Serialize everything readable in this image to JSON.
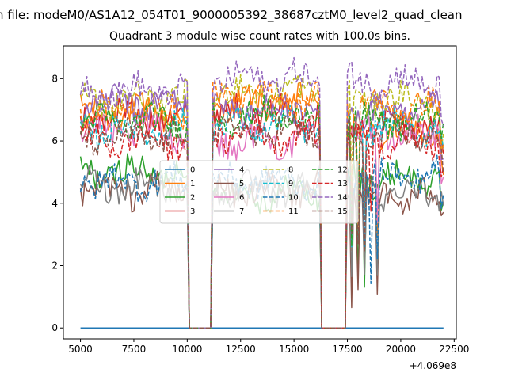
{
  "chart_data": {
    "type": "line",
    "suptitle": "n file: modeM0/AS1A12_054T01_9000005392_38687cztM0_level2_quad_clean",
    "title": "Quadrant 3 module wise count rates with 100.0s bins.",
    "xlabel": "",
    "ylabel": "",
    "x_offset_label": "+4.069e8",
    "xlim": [
      4200,
      22600
    ],
    "ylim": [
      -0.35,
      9.05
    ],
    "x_ticks": [
      5000,
      7500,
      10000,
      12500,
      15000,
      17500,
      20000,
      22500
    ],
    "x_tick_labels": [
      "5000",
      "7500",
      "10000",
      "12500",
      "15000",
      "17500",
      "20000",
      "22500"
    ],
    "y_ticks": [
      0,
      2,
      4,
      6,
      8
    ],
    "y_tick_labels": [
      "0",
      "2",
      "4",
      "6",
      "8"
    ],
    "x_range": [
      5000,
      22000
    ],
    "bin_seconds": 100,
    "gaps": [
      [
        10050,
        11100
      ],
      [
        16250,
        17400
      ]
    ],
    "legend_position": "center",
    "legend_columns": 4,
    "series": [
      {
        "name": "0",
        "style": "solid",
        "color": "#1f77b4",
        "constant": 0.0
      },
      {
        "name": "1",
        "style": "solid",
        "color": "#ff7f0e",
        "levels": [
          6.9,
          7.2,
          6.3
        ]
      },
      {
        "name": "2",
        "style": "solid",
        "color": "#2ca02c",
        "levels": [
          5.0,
          4.3,
          4.8
        ]
      },
      {
        "name": "3",
        "style": "solid",
        "color": "#d62728",
        "levels": [
          6.8,
          6.9,
          6.5
        ]
      },
      {
        "name": "4",
        "style": "solid",
        "color": "#9467bd",
        "levels": [
          7.2,
          7.0,
          6.9
        ]
      },
      {
        "name": "5",
        "style": "solid",
        "color": "#8c564b",
        "levels": [
          4.4,
          4.4,
          4.2
        ]
      },
      {
        "name": "6",
        "style": "solid",
        "color": "#e377c2",
        "levels": [
          6.3,
          6.0,
          6.2
        ]
      },
      {
        "name": "7",
        "style": "solid",
        "color": "#7f7f7f",
        "levels": [
          4.6,
          4.4,
          4.4
        ]
      },
      {
        "name": "8",
        "style": "dashed",
        "color": "#bcbd22",
        "levels": [
          7.3,
          7.6,
          7.3
        ]
      },
      {
        "name": "9",
        "style": "dashed",
        "color": "#17becf",
        "levels": [
          6.4,
          6.5,
          6.4
        ]
      },
      {
        "name": "10",
        "style": "dashed",
        "color": "#1f77b4",
        "levels": [
          4.7,
          4.7,
          4.9
        ]
      },
      {
        "name": "11",
        "style": "dashed",
        "color": "#ff7f0e",
        "levels": [
          7.0,
          7.4,
          7.1
        ]
      },
      {
        "name": "12",
        "style": "dashed",
        "color": "#2ca02c",
        "levels": [
          6.6,
          6.8,
          6.6
        ]
      },
      {
        "name": "13",
        "style": "dashed",
        "color": "#d62728",
        "levels": [
          6.0,
          6.2,
          6.0
        ]
      },
      {
        "name": "14",
        "style": "dashed",
        "color": "#9467bd",
        "levels": [
          7.6,
          8.0,
          7.9
        ]
      },
      {
        "name": "15",
        "style": "dashed",
        "color": "#8c564b",
        "levels": [
          6.1,
          6.3,
          6.2
        ]
      }
    ]
  }
}
